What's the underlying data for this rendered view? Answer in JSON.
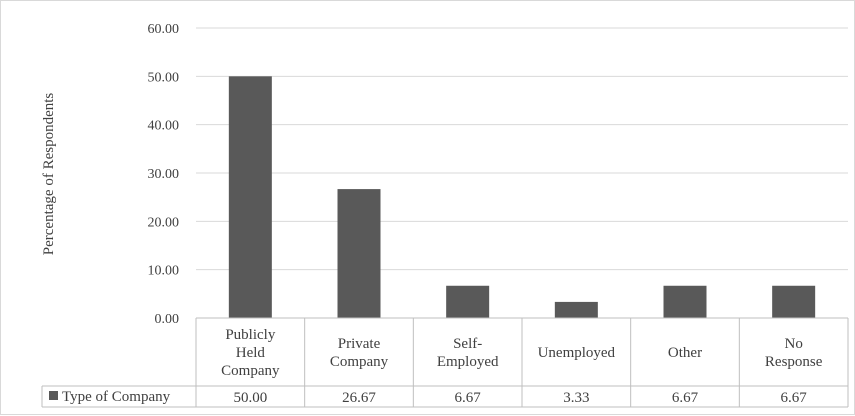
{
  "chart_data": {
    "type": "bar",
    "ylabel": "Percentage of Respondents",
    "ylim": [
      0,
      60
    ],
    "yticks": [
      "0.00",
      "10.00",
      "20.00",
      "30.00",
      "40.00",
      "50.00",
      "60.00"
    ],
    "grid": true,
    "categories": [
      "Publicly Held Company",
      "Private Company",
      "Self-Employed",
      "Unemployed",
      "Other",
      "No Response"
    ],
    "category_label_lines": [
      [
        "Publicly",
        "Held",
        "Company"
      ],
      [
        "Private",
        "Company"
      ],
      [
        "Self-",
        "Employed"
      ],
      [
        "Unemployed"
      ],
      [
        "Other"
      ],
      [
        "No",
        "Response"
      ]
    ],
    "series": [
      {
        "name": "Type of Company",
        "values": [
          50.0,
          26.67,
          6.67,
          3.33,
          6.67,
          6.67
        ],
        "value_labels": [
          "50.00",
          "26.67",
          "6.67",
          "3.33",
          "6.67",
          "6.67"
        ],
        "color": "#595959"
      }
    ],
    "data_table": true
  }
}
